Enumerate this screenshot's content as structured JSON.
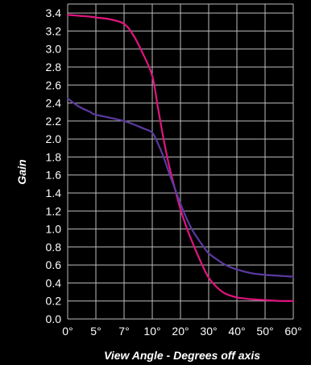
{
  "chart_data": {
    "type": "line",
    "xlabel": "View Angle - Degrees off axis",
    "ylabel": "Gain",
    "x_ticks": [
      {
        "label": "0°",
        "value": 0
      },
      {
        "label": "5°",
        "value": 5
      },
      {
        "label": "7°",
        "value": 7
      },
      {
        "label": "10°",
        "value": 10
      },
      {
        "label": "20°",
        "value": 20
      },
      {
        "label": "30°",
        "value": 30
      },
      {
        "label": "40°",
        "value": 40
      },
      {
        "label": "50°",
        "value": 50
      },
      {
        "label": "60°",
        "value": 60
      }
    ],
    "y_ticks": [
      "0.0",
      "0.2",
      "0.4",
      "0.6",
      "0.8",
      "1.0",
      "1.2",
      "1.4",
      "1.6",
      "1.8",
      "2.0",
      "2.2",
      "2.4",
      "2.6",
      "2.8",
      "3.0",
      "3.2",
      "3.4"
    ],
    "ylim": [
      0,
      3.5
    ],
    "grid": true,
    "series": [
      {
        "color": "#e0157f",
        "points": [
          [
            0,
            3.38
          ],
          [
            2,
            3.37
          ],
          [
            4,
            3.36
          ],
          [
            5,
            3.35
          ],
          [
            6,
            3.33
          ],
          [
            7,
            3.28
          ],
          [
            8,
            3.15
          ],
          [
            9,
            2.95
          ],
          [
            10,
            2.7
          ],
          [
            12,
            2.35
          ],
          [
            14,
            2.0
          ],
          [
            16,
            1.7
          ],
          [
            18,
            1.45
          ],
          [
            20,
            1.22
          ],
          [
            22,
            1.03
          ],
          [
            24,
            0.87
          ],
          [
            26,
            0.72
          ],
          [
            28,
            0.58
          ],
          [
            30,
            0.46
          ],
          [
            33,
            0.35
          ],
          [
            36,
            0.28
          ],
          [
            40,
            0.24
          ],
          [
            45,
            0.22
          ],
          [
            50,
            0.21
          ],
          [
            55,
            0.2
          ],
          [
            60,
            0.2
          ]
        ]
      },
      {
        "color": "#5b3aa0",
        "points": [
          [
            0,
            2.45
          ],
          [
            2,
            2.36
          ],
          [
            4,
            2.3
          ],
          [
            5,
            2.27
          ],
          [
            7,
            2.2
          ],
          [
            9,
            2.12
          ],
          [
            10,
            2.07
          ],
          [
            12,
            1.95
          ],
          [
            14,
            1.8
          ],
          [
            16,
            1.62
          ],
          [
            18,
            1.45
          ],
          [
            20,
            1.28
          ],
          [
            22,
            1.13
          ],
          [
            24,
            1.0
          ],
          [
            26,
            0.9
          ],
          [
            28,
            0.81
          ],
          [
            30,
            0.73
          ],
          [
            33,
            0.66
          ],
          [
            36,
            0.6
          ],
          [
            40,
            0.55
          ],
          [
            45,
            0.51
          ],
          [
            50,
            0.49
          ],
          [
            55,
            0.48
          ],
          [
            60,
            0.47
          ]
        ]
      }
    ]
  }
}
